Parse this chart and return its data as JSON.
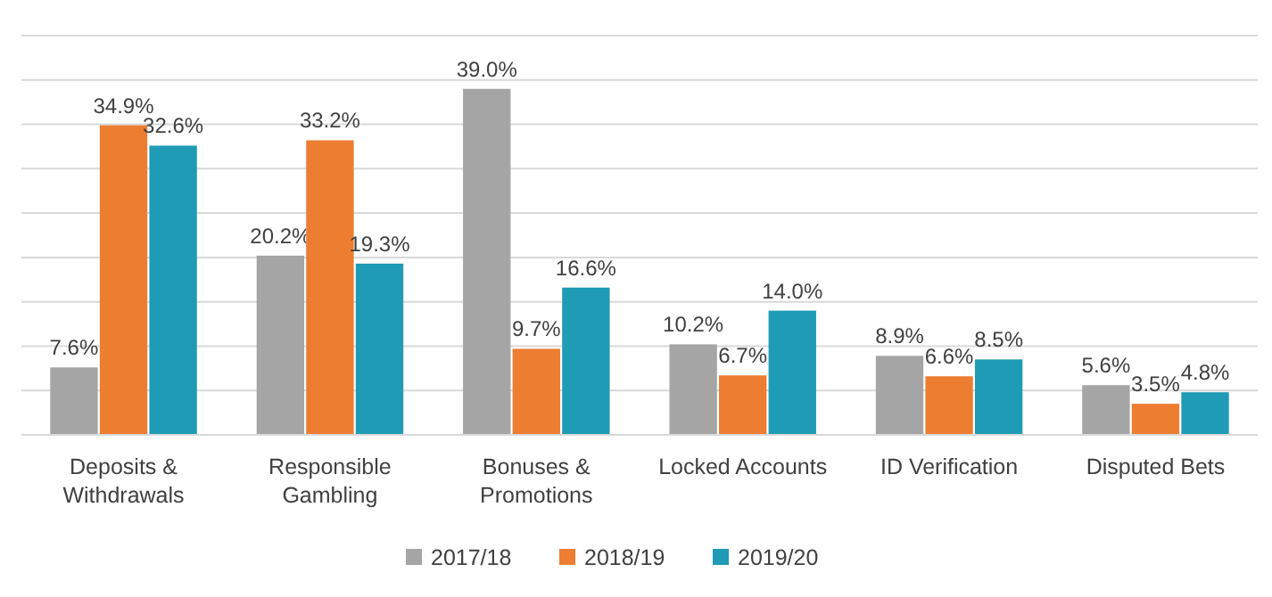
{
  "chart_data": {
    "type": "bar",
    "categories": [
      "Deposits & Withdrawals",
      "Responsible Gambling",
      "Bonuses & Promotions",
      "Locked Accounts",
      "ID Verification",
      "Disputed Bets"
    ],
    "series": [
      {
        "name": "2017/18",
        "color": "#a5a5a5",
        "values": [
          7.6,
          20.2,
          39.0,
          10.2,
          8.9,
          5.6
        ],
        "value_labels": [
          "7.6%",
          "20.2%",
          "39.0%",
          "10.2%",
          "8.9%",
          "5.6%"
        ]
      },
      {
        "name": "2018/19",
        "color": "#ed7d31",
        "values": [
          34.9,
          33.2,
          9.7,
          6.7,
          6.6,
          3.5
        ],
        "value_labels": [
          "34.9%",
          "33.2%",
          "9.7%",
          "6.7%",
          "6.6%",
          "3.5%"
        ]
      },
      {
        "name": "2019/20",
        "color": "#1f9bb5",
        "values": [
          32.6,
          19.3,
          16.6,
          14.0,
          8.5,
          4.8
        ],
        "value_labels": [
          "32.6%",
          "19.3%",
          "16.6%",
          "14.0%",
          "8.5%",
          "4.8%"
        ]
      }
    ],
    "ylim": [
      0,
      45
    ],
    "yticks": [
      {
        "value": 0,
        "label": null
      },
      {
        "value": 5,
        "label": null
      },
      {
        "value": 10,
        "label": null
      },
      {
        "value": 15,
        "label": null
      },
      {
        "value": 20,
        "label": null
      },
      {
        "value": 25,
        "label": null
      },
      {
        "value": 30,
        "label": null
      },
      {
        "value": 35,
        "label": null
      },
      {
        "value": 40,
        "label": null
      },
      {
        "value": 45,
        "label": null
      }
    ],
    "grid": "y",
    "tick_labels": "x",
    "legend": "bottom"
  }
}
